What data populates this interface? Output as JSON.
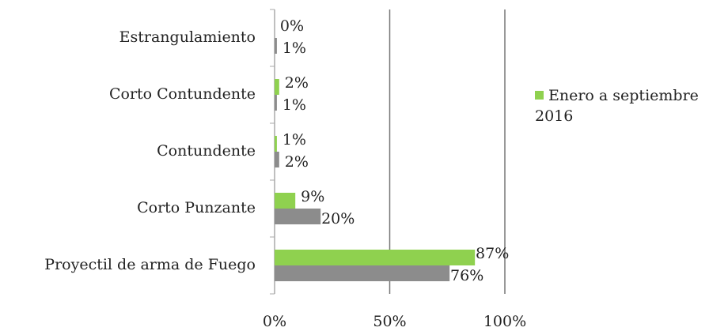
{
  "chart_data": {
    "type": "hbar",
    "categories": [
      "Estrangulamiento",
      "Corto Contundente",
      "Contundente",
      "Corto Punzante",
      "Proyectil de arma de Fuego"
    ],
    "series": [
      {
        "name": "Enero a septiembre 2016",
        "color": "#8fd14f",
        "values": [
          0,
          2,
          1,
          9,
          87
        ],
        "value_labels": [
          "0%",
          "2%",
          "1%",
          "9%",
          "87%"
        ]
      },
      {
        "color": "#8c8c8c",
        "values": [
          1,
          1,
          2,
          20,
          76
        ],
        "value_labels": [
          "1%",
          "1%",
          "2%",
          "20%",
          "76%"
        ]
      }
    ],
    "xlim": [
      0,
      100
    ],
    "xticks": [
      {
        "value": 0,
        "label": "0%"
      },
      {
        "value": 50,
        "label": "50%"
      },
      {
        "value": 100,
        "label": "100%"
      }
    ],
    "grid": true,
    "legend": "right"
  }
}
